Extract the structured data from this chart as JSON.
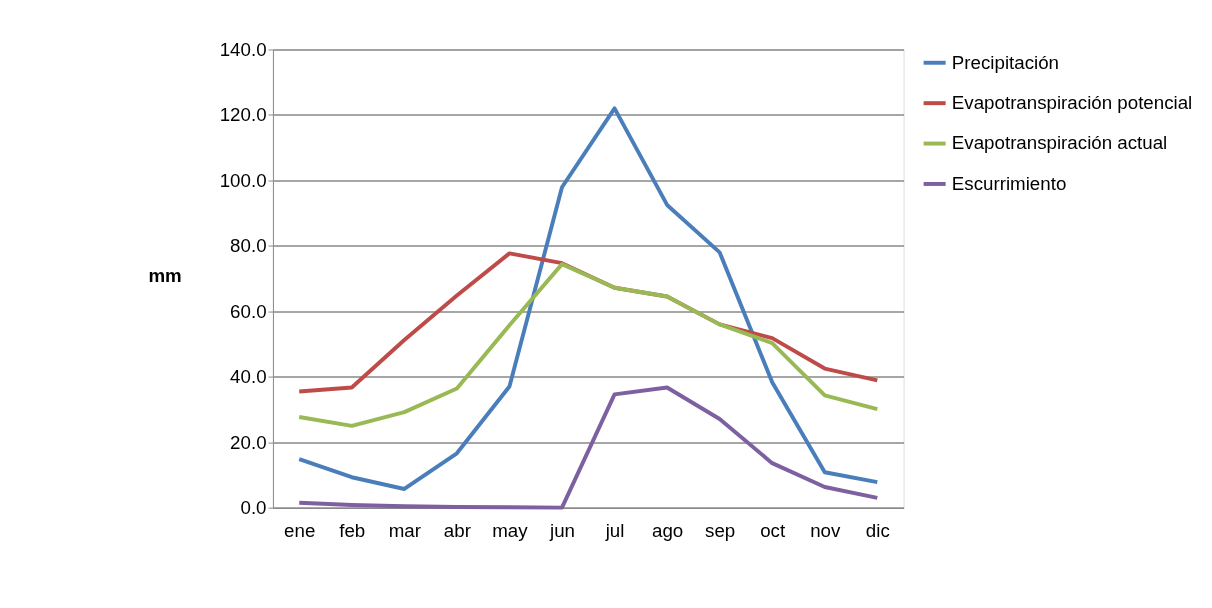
{
  "chart_data": {
    "type": "line",
    "ylabel": "mm",
    "categories": [
      "ene",
      "feb",
      "mar",
      "abr",
      "may",
      "jun",
      "jul",
      "ago",
      "sep",
      "oct",
      "nov",
      "dic"
    ],
    "series": [
      {
        "name": "Precipitación",
        "color": "#4a7ebb",
        "values": [
          14.8,
          9.3,
          5.7,
          16.6,
          37.0,
          97.9,
          122.0,
          92.5,
          78.0,
          38.3,
          10.8,
          7.8
        ]
      },
      {
        "name": "Evapotranspiración potencial",
        "color": "#be4b48",
        "values": [
          35.5,
          36.7,
          51.2,
          64.8,
          77.7,
          74.7,
          67.2,
          64.5,
          56.0,
          51.8,
          42.5,
          38.9
        ]
      },
      {
        "name": "Evapotranspiración actual",
        "color": "#98b954",
        "values": [
          27.7,
          25.0,
          29.2,
          36.4,
          55.7,
          74.4,
          67.2,
          64.5,
          56.0,
          50.3,
          34.3,
          30.1
        ]
      },
      {
        "name": "Escurrimiento",
        "color": "#7d60a0",
        "values": [
          1.5,
          0.8,
          0.4,
          0.2,
          0.1,
          0.0,
          34.6,
          36.7,
          27.1,
          13.6,
          6.3,
          3.0
        ]
      }
    ],
    "ylim": [
      0,
      140
    ],
    "yticks": [
      {
        "value": 0,
        "label": "0.0"
      },
      {
        "value": 20,
        "label": "20.0"
      },
      {
        "value": 40,
        "label": "40.0"
      },
      {
        "value": 60,
        "label": "60.0"
      },
      {
        "value": 80,
        "label": "80.0"
      },
      {
        "value": 100,
        "label": "100.0"
      },
      {
        "value": 120,
        "label": "120.0"
      },
      {
        "value": 140,
        "label": "140.0"
      }
    ],
    "grid": "y",
    "legend": "right",
    "marker": "none",
    "line_style": "solid"
  }
}
